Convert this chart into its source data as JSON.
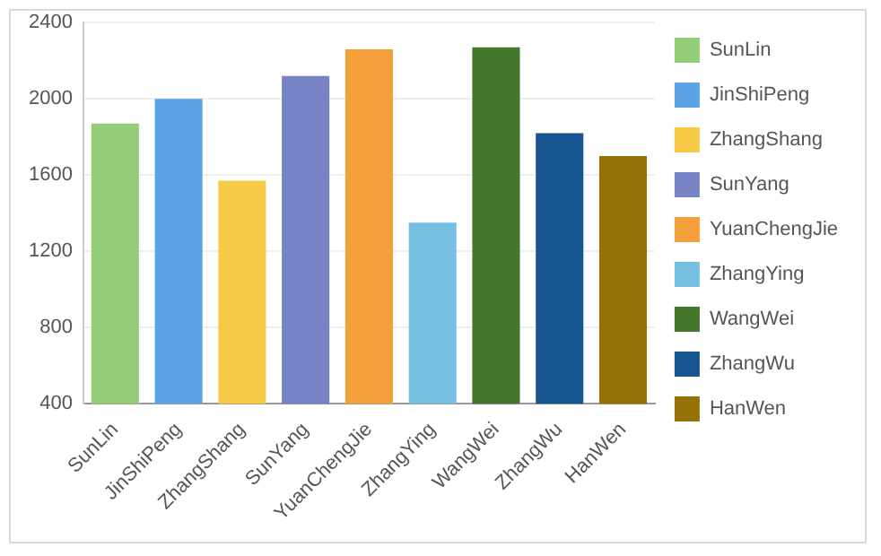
{
  "chart_data": {
    "type": "bar",
    "categories": [
      "SunLin",
      "JinShiPeng",
      "ZhangShang",
      "SunYang",
      "YuanChengJie",
      "ZhangYing",
      "WangWei",
      "ZhangWu",
      "HanWen"
    ],
    "series": [
      {
        "name": "SunLin",
        "color": "#93cd77",
        "values": [
          1870,
          null,
          null,
          null,
          null,
          null,
          null,
          null,
          null
        ]
      },
      {
        "name": "JinShiPeng",
        "color": "#5ba2e6",
        "values": [
          null,
          2000,
          null,
          null,
          null,
          null,
          null,
          null,
          null
        ]
      },
      {
        "name": "ZhangShang",
        "color": "#f6c947",
        "values": [
          null,
          null,
          1570,
          null,
          null,
          null,
          null,
          null,
          null
        ]
      },
      {
        "name": "SunYang",
        "color": "#7883c6",
        "values": [
          null,
          null,
          null,
          2120,
          null,
          null,
          null,
          null,
          null
        ]
      },
      {
        "name": "YuanChengJie",
        "color": "#f39f3a",
        "values": [
          null,
          null,
          null,
          null,
          2260,
          null,
          null,
          null,
          null
        ]
      },
      {
        "name": "ZhangYing",
        "color": "#75c0e0",
        "values": [
          null,
          null,
          null,
          null,
          null,
          1350,
          null,
          null,
          null
        ]
      },
      {
        "name": "WangWei",
        "color": "#42772c",
        "values": [
          null,
          null,
          null,
          null,
          null,
          null,
          2270,
          null,
          null
        ]
      },
      {
        "name": "ZhangWu",
        "color": "#175591",
        "values": [
          null,
          null,
          null,
          null,
          null,
          null,
          null,
          1820,
          null
        ]
      },
      {
        "name": "HanWen",
        "color": "#957106",
        "values": [
          null,
          null,
          null,
          null,
          null,
          null,
          null,
          null,
          1700
        ]
      }
    ],
    "ylim": [
      400,
      2400
    ],
    "yticks": [
      400,
      800,
      1200,
      1600,
      2000,
      2400
    ],
    "grid": "y",
    "legend": "right"
  }
}
